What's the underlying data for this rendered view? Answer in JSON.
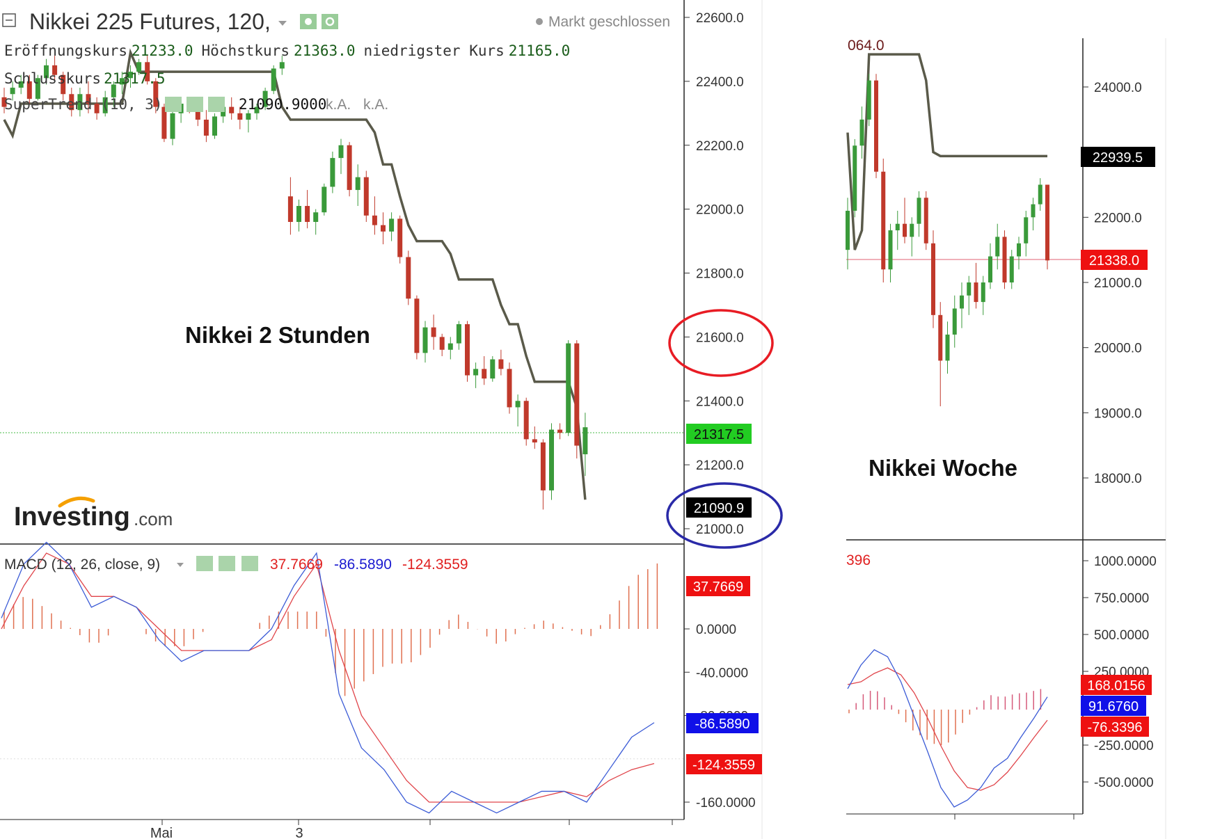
{
  "left_chart": {
    "symbol_title": "Nikkei 225 Futures, 120,",
    "market_status": "Markt geschlossen",
    "ohlc": [
      {
        "label": "Eröffnungskurs",
        "value": "21233.0"
      },
      {
        "label": "Höchstkurs",
        "value": "21363.0"
      },
      {
        "label": "niedrigster Kurs",
        "value": "21165.0"
      }
    ],
    "close": {
      "label": "Schlusskurs",
      "value": "21317.5"
    },
    "indicator": {
      "label": "SuperTrend (10, 3)",
      "value": "21090.9000",
      "na1": "k.A.",
      "na2": "k.A."
    },
    "annotation": "Nikkei 2 Stunden",
    "logo_main": "Investing",
    "logo_suffix": ".com",
    "price_ticks": [
      "22600.0",
      "22400.0",
      "22200.0",
      "22000.0",
      "21800.0",
      "21600.0",
      "21400.0",
      "21200.0",
      "21000.0"
    ],
    "last_price_tag": "21317.5",
    "supertrend_tag": "21090.9",
    "macd_label": "MACD (12, 26, close, 9)",
    "macd_values": [
      "37.7669",
      "-86.5890",
      "-124.3559"
    ],
    "macd_ticks": [
      "0.0000",
      "-40.0000",
      "-80.0000",
      "-160.0000"
    ],
    "macd_tags": [
      "37.7669",
      "-86.5890",
      "-124.3559"
    ],
    "x_labels": [
      "Mai",
      "3"
    ]
  },
  "right_chart": {
    "top_fragment": "064.0",
    "annotation": "Nikkei Woche",
    "price_ticks": [
      "24000.0",
      "22000.0",
      "21000.0",
      "20000.0",
      "19000.0",
      "18000.0"
    ],
    "supertrend_tag": "22939.5",
    "last_price_tag": "21338.0",
    "macd_fragment": "396",
    "macd_ticks": [
      "1000.0000",
      "750.0000",
      "500.0000",
      "250.0000",
      "-250.0000",
      "-500.0000"
    ],
    "macd_tags": [
      "168.0156",
      "91.6760",
      "-76.3396"
    ]
  },
  "colors": {
    "up": "#3a9a3a",
    "down": "#c0392b",
    "supertrend": "#5a5a4a",
    "macd_line": "#3b5bd6",
    "signal_line": "#e0444a",
    "hist": "#e07050",
    "green_tag": "#22cc22",
    "red_tag": "#ee1111",
    "blue_tag": "#1010e8",
    "red_circle": "#e81c24",
    "blue_circle": "#2a2aa8"
  },
  "chart_data": [
    {
      "type": "candlestick",
      "title": "Nikkei 225 Futures, 120,",
      "annotation": "Nikkei 2 Stunden",
      "ylim": [
        21000,
        22600
      ],
      "candles": [
        {
          "o": 22350,
          "h": 22380,
          "l": 22300,
          "c": 22320
        },
        {
          "o": 22360,
          "h": 22400,
          "l": 22340,
          "c": 22380
        },
        {
          "o": 22380,
          "h": 22420,
          "l": 22360,
          "c": 22400
        },
        {
          "o": 22400,
          "h": 22420,
          "l": 22330,
          "c": 22345
        },
        {
          "o": 22345,
          "h": 22420,
          "l": 22340,
          "c": 22410
        },
        {
          "o": 22410,
          "h": 22470,
          "l": 22390,
          "c": 22450
        },
        {
          "o": 22450,
          "h": 22480,
          "l": 22400,
          "c": 22420
        },
        {
          "o": 22420,
          "h": 22430,
          "l": 22340,
          "c": 22360
        },
        {
          "o": 22360,
          "h": 22380,
          "l": 22290,
          "c": 22310
        },
        {
          "o": 22310,
          "h": 22380,
          "l": 22290,
          "c": 22360
        },
        {
          "o": 22360,
          "h": 22400,
          "l": 22300,
          "c": 22330
        },
        {
          "o": 22330,
          "h": 22350,
          "l": 22280,
          "c": 22300
        },
        {
          "o": 22300,
          "h": 22370,
          "l": 22290,
          "c": 22350
        },
        {
          "o": 22350,
          "h": 22400,
          "l": 22320,
          "c": 22390
        },
        {
          "o": 22390,
          "h": 22430,
          "l": 22360,
          "c": 22410
        },
        {
          "o": 22410,
          "h": 22450,
          "l": 22380,
          "c": 22430
        },
        {
          "o": 22430,
          "h": 22470,
          "l": 22420,
          "c": 22460
        },
        {
          "o": 22460,
          "h": 22480,
          "l": 22390,
          "c": 22400
        },
        {
          "o": 22400,
          "h": 22410,
          "l": 22300,
          "c": 22320
        },
        {
          "o": 22320,
          "h": 22330,
          "l": 22210,
          "c": 22220
        },
        {
          "o": 22220,
          "h": 22320,
          "l": 22200,
          "c": 22300
        },
        {
          "o": 22300,
          "h": 22340,
          "l": 22270,
          "c": 22330
        },
        {
          "o": 22330,
          "h": 22350,
          "l": 22300,
          "c": 22320
        },
        {
          "o": 22320,
          "h": 22340,
          "l": 22260,
          "c": 22280
        },
        {
          "o": 22280,
          "h": 22310,
          "l": 22210,
          "c": 22230
        },
        {
          "o": 22230,
          "h": 22300,
          "l": 22220,
          "c": 22290
        },
        {
          "o": 22290,
          "h": 22330,
          "l": 22270,
          "c": 22320
        },
        {
          "o": 22320,
          "h": 22350,
          "l": 22280,
          "c": 22300
        },
        {
          "o": 22300,
          "h": 22320,
          "l": 22250,
          "c": 22280
        },
        {
          "o": 22280,
          "h": 22310,
          "l": 22240,
          "c": 22300
        },
        {
          "o": 22300,
          "h": 22330,
          "l": 22280,
          "c": 22320
        },
        {
          "o": 22320,
          "h": 22380,
          "l": 22310,
          "c": 22370
        },
        {
          "o": 22370,
          "h": 22450,
          "l": 22360,
          "c": 22440
        },
        {
          "o": 22440,
          "h": 22480,
          "l": 22420,
          "c": 22460
        },
        {
          "o": 22040,
          "h": 22100,
          "l": 21920,
          "c": 21960
        },
        {
          "o": 21960,
          "h": 22030,
          "l": 21930,
          "c": 22010
        },
        {
          "o": 22010,
          "h": 22060,
          "l": 21940,
          "c": 21960
        },
        {
          "o": 21960,
          "h": 22000,
          "l": 21920,
          "c": 21990
        },
        {
          "o": 21990,
          "h": 22080,
          "l": 21980,
          "c": 22070
        },
        {
          "o": 22070,
          "h": 22180,
          "l": 22050,
          "c": 22160
        },
        {
          "o": 22160,
          "h": 22220,
          "l": 22110,
          "c": 22200
        },
        {
          "o": 22200,
          "h": 22210,
          "l": 22040,
          "c": 22060
        },
        {
          "o": 22060,
          "h": 22140,
          "l": 22010,
          "c": 22100
        },
        {
          "o": 22100,
          "h": 22120,
          "l": 21960,
          "c": 21980
        },
        {
          "o": 21980,
          "h": 22040,
          "l": 21920,
          "c": 21950
        },
        {
          "o": 21950,
          "h": 21990,
          "l": 21890,
          "c": 21930
        },
        {
          "o": 21930,
          "h": 21990,
          "l": 21900,
          "c": 21970
        },
        {
          "o": 21970,
          "h": 21980,
          "l": 21830,
          "c": 21850
        },
        {
          "o": 21850,
          "h": 21870,
          "l": 21700,
          "c": 21720
        },
        {
          "o": 21720,
          "h": 21730,
          "l": 21530,
          "c": 21550
        },
        {
          "o": 21550,
          "h": 21650,
          "l": 21520,
          "c": 21630
        },
        {
          "o": 21630,
          "h": 21670,
          "l": 21560,
          "c": 21600
        },
        {
          "o": 21600,
          "h": 21610,
          "l": 21540,
          "c": 21560
        },
        {
          "o": 21560,
          "h": 21600,
          "l": 21530,
          "c": 21580
        },
        {
          "o": 21580,
          "h": 21650,
          "l": 21560,
          "c": 21640
        },
        {
          "o": 21640,
          "h": 21650,
          "l": 21460,
          "c": 21480
        },
        {
          "o": 21480,
          "h": 21520,
          "l": 21440,
          "c": 21500
        },
        {
          "o": 21500,
          "h": 21540,
          "l": 21450,
          "c": 21470
        },
        {
          "o": 21470,
          "h": 21540,
          "l": 21460,
          "c": 21530
        },
        {
          "o": 21530,
          "h": 21560,
          "l": 21480,
          "c": 21500
        },
        {
          "o": 21500,
          "h": 21520,
          "l": 21360,
          "c": 21380
        },
        {
          "o": 21380,
          "h": 21420,
          "l": 21320,
          "c": 21400
        },
        {
          "o": 21400,
          "h": 21410,
          "l": 21260,
          "c": 21280
        },
        {
          "o": 21280,
          "h": 21320,
          "l": 21250,
          "c": 21270
        },
        {
          "o": 21270,
          "h": 21280,
          "l": 21060,
          "c": 21120
        },
        {
          "o": 21120,
          "h": 21330,
          "l": 21090,
          "c": 21310
        },
        {
          "o": 21310,
          "h": 21330,
          "l": 21280,
          "c": 21300
        },
        {
          "o": 21300,
          "h": 21590,
          "l": 21290,
          "c": 21580
        },
        {
          "o": 21580,
          "h": 21590,
          "l": 21220,
          "c": 21260
        },
        {
          "o": 21233,
          "h": 21363,
          "l": 21165,
          "c": 21317.5
        }
      ],
      "supertrend": [
        22280,
        22230,
        22330,
        22330,
        22330,
        22330,
        22330,
        22330,
        22330,
        22330,
        22330,
        22330,
        22330,
        22330,
        22330,
        22490,
        22430,
        22430,
        22430,
        22430,
        22430,
        22430,
        22430,
        22430,
        22430,
        22430,
        22430,
        22430,
        22430,
        22430,
        22430,
        22430,
        22430,
        22320,
        22280,
        22280,
        22280,
        22280,
        22280,
        22280,
        22280,
        22280,
        22280,
        22280,
        22240,
        22140,
        22140,
        22040,
        21950,
        21900,
        21900,
        21900,
        21900,
        21860,
        21780,
        21780,
        21780,
        21780,
        21780,
        21700,
        21640,
        21640,
        21540,
        21460,
        21460,
        21460,
        21460,
        21460,
        21380,
        21090.9
      ],
      "macd": {
        "macd_line": [
          10,
          60,
          80,
          60,
          20,
          30,
          20,
          -10,
          -30,
          -20,
          -20,
          -20,
          0,
          40,
          70,
          -60,
          -110,
          -130,
          -160,
          -170,
          -150,
          -160,
          -170,
          -160,
          -150,
          -150,
          -160,
          -130,
          -100,
          -86.589
        ],
        "signal_line": [
          0,
          40,
          70,
          60,
          30,
          30,
          20,
          0,
          -20,
          -20,
          -20,
          -20,
          -10,
          30,
          60,
          -20,
          -80,
          -110,
          -140,
          -160,
          -160,
          -160,
          -160,
          -160,
          -155,
          -150,
          -155,
          -140,
          -130,
          -124.3559
        ],
        "histogram_last": 37.7669,
        "ticks": [
          0,
          -40,
          -80,
          -160
        ]
      }
    },
    {
      "type": "candlestick",
      "annotation": "Nikkei Woche",
      "ylim": [
        17000,
        24500
      ],
      "candles": [
        {
          "o": 21500,
          "h": 22300,
          "l": 21200,
          "c": 22100
        },
        {
          "o": 22100,
          "h": 23200,
          "l": 22000,
          "c": 23100
        },
        {
          "o": 23100,
          "h": 23700,
          "l": 22900,
          "c": 23500
        },
        {
          "o": 23500,
          "h": 24200,
          "l": 23400,
          "c": 24100
        },
        {
          "o": 24100,
          "h": 24200,
          "l": 22600,
          "c": 22700
        },
        {
          "o": 22700,
          "h": 22900,
          "l": 21000,
          "c": 21200
        },
        {
          "o": 21200,
          "h": 21900,
          "l": 21000,
          "c": 21800
        },
        {
          "o": 21800,
          "h": 22100,
          "l": 21500,
          "c": 21900
        },
        {
          "o": 21900,
          "h": 22300,
          "l": 21600,
          "c": 21700
        },
        {
          "o": 21700,
          "h": 22000,
          "l": 21400,
          "c": 21900
        },
        {
          "o": 21900,
          "h": 22400,
          "l": 21700,
          "c": 22300
        },
        {
          "o": 22300,
          "h": 22400,
          "l": 21500,
          "c": 21600
        },
        {
          "o": 21600,
          "h": 21800,
          "l": 20300,
          "c": 20500
        },
        {
          "o": 20500,
          "h": 20700,
          "l": 19100,
          "c": 19800
        },
        {
          "o": 19800,
          "h": 20400,
          "l": 19600,
          "c": 20200
        },
        {
          "o": 20200,
          "h": 20800,
          "l": 20000,
          "c": 20600
        },
        {
          "o": 20600,
          "h": 21000,
          "l": 20300,
          "c": 20800
        },
        {
          "o": 20800,
          "h": 21100,
          "l": 20500,
          "c": 21000
        },
        {
          "o": 21000,
          "h": 21300,
          "l": 20600,
          "c": 20700
        },
        {
          "o": 20700,
          "h": 21100,
          "l": 20500,
          "c": 21000
        },
        {
          "o": 21000,
          "h": 21600,
          "l": 20900,
          "c": 21400
        },
        {
          "o": 21400,
          "h": 21900,
          "l": 21200,
          "c": 21700
        },
        {
          "o": 21700,
          "h": 21800,
          "l": 20900,
          "c": 21000
        },
        {
          "o": 21000,
          "h": 21500,
          "l": 20900,
          "c": 21400
        },
        {
          "o": 21400,
          "h": 21700,
          "l": 21200,
          "c": 21600
        },
        {
          "o": 21600,
          "h": 22100,
          "l": 21400,
          "c": 22000
        },
        {
          "o": 22000,
          "h": 22300,
          "l": 21800,
          "c": 22200
        },
        {
          "o": 22200,
          "h": 22600,
          "l": 22100,
          "c": 22500
        },
        {
          "o": 22500,
          "h": 22500,
          "l": 21200,
          "c": 21338
        }
      ],
      "supertrend": [
        23300,
        21500,
        21800,
        24500,
        24500,
        24500,
        24500,
        24500,
        24500,
        24500,
        24500,
        24100,
        23000,
        22939.5,
        22939.5,
        22939.5,
        22939.5,
        22939.5,
        22939.5,
        22939.5,
        22939.5,
        22939.5,
        22939.5,
        22939.5,
        22939.5,
        22939.5,
        22939.5,
        22939.5,
        22939.5
      ],
      "macd": {
        "tags": [
          168.0156,
          91.676,
          -76.3396
        ],
        "ticks": [
          1000,
          750,
          500,
          250,
          -250,
          -500
        ]
      }
    }
  ]
}
